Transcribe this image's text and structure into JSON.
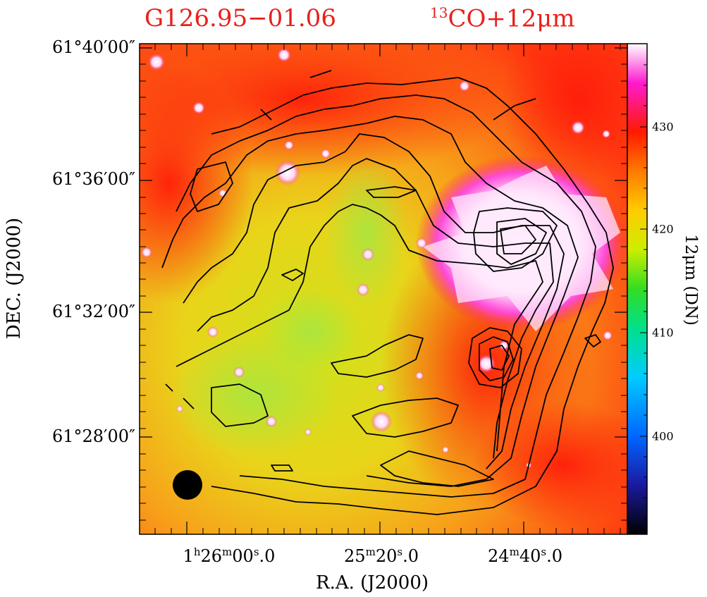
{
  "chart_data": {
    "type": "heatmap",
    "title_left": "G126.95−01.06",
    "title_right_sup": "13",
    "title_right": "CO+12μm",
    "xlabel": "R.A.  (J2000)",
    "ylabel": "DEC.  (J2000)",
    "x_ticks": [
      {
        "h": "1",
        "hsup": "h",
        "m": "26",
        "msup": "m",
        "s": "00",
        "ssup": "s",
        "frac": ".0"
      },
      {
        "h": "",
        "hsup": "",
        "m": "25",
        "msup": "m",
        "s": "20",
        "ssup": "s",
        "frac": ".0"
      },
      {
        "h": "",
        "hsup": "",
        "m": "24",
        "msup": "m",
        "s": "40",
        "ssup": "s",
        "frac": ".0"
      }
    ],
    "y_ticks": [
      "61°40′00″",
      "61°36′00″",
      "61°32′00″",
      "61°28′00″"
    ],
    "colorbar": {
      "label": "12μm  (DN)",
      "ticks": [
        "430",
        "420",
        "410",
        "400"
      ],
      "range": [
        391,
        438
      ],
      "colors": [
        "#000000",
        "#1a1aa0",
        "#0066ff",
        "#00ccff",
        "#00e08a",
        "#33dd22",
        "#ccee00",
        "#ffcc00",
        "#ff7a00",
        "#ff1a00",
        "#ff1ad0",
        "#ffffff"
      ]
    },
    "contour_levels": 9,
    "beam": "filled black circle"
  }
}
